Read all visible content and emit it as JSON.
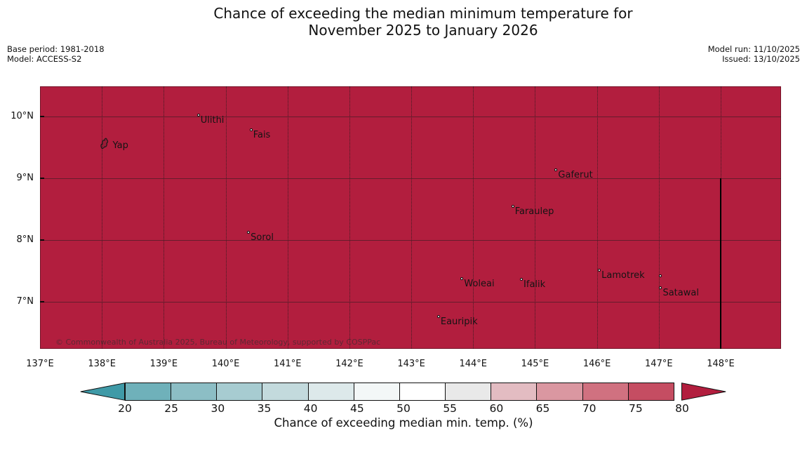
{
  "title": {
    "line1": "Chance of exceeding the median minimum temperature for",
    "line2": "November 2025 to January 2026"
  },
  "annotations": {
    "base_period": "Base period: 1981-2018",
    "model": "Model: ACCESS-S2",
    "model_run": "Model run: 11/10/2025",
    "issued": "Issued: 13/10/2025"
  },
  "map": {
    "fill_color": "#b21e3e",
    "copyright": "© Commonwealth of Australia 2025, Bureau of Meteorology, supported by COSPPac",
    "x_ticks": [
      {
        "label": "137°E",
        "lon": 137
      },
      {
        "label": "138°E",
        "lon": 138
      },
      {
        "label": "139°E",
        "lon": 139
      },
      {
        "label": "140°E",
        "lon": 140
      },
      {
        "label": "141°E",
        "lon": 141
      },
      {
        "label": "142°E",
        "lon": 142
      },
      {
        "label": "143°E",
        "lon": 143
      },
      {
        "label": "144°E",
        "lon": 144
      },
      {
        "label": "145°E",
        "lon": 145
      },
      {
        "label": "146°E",
        "lon": 146
      },
      {
        "label": "147°E",
        "lon": 147
      },
      {
        "label": "148°E",
        "lon": 148
      }
    ],
    "y_ticks": [
      {
        "label": "10°N",
        "lat": 10
      },
      {
        "label": "9°N",
        "lat": 9
      },
      {
        "label": "8°N",
        "lat": 8
      },
      {
        "label": "7°N",
        "lat": 7
      }
    ],
    "boundary_line": {
      "lon": 148,
      "lat_from": 9,
      "to_bottom": true
    },
    "places": [
      {
        "name": "Ulithi",
        "lon": 139.56,
        "lat": 10.02
      },
      {
        "name": "Fais",
        "lon": 140.41,
        "lat": 9.79
      },
      {
        "name": "Yap",
        "lon": 138.06,
        "lat": 9.56,
        "icon": "island"
      },
      {
        "name": "Gaferut",
        "lon": 145.34,
        "lat": 9.14
      },
      {
        "name": "Faraulep",
        "lon": 144.64,
        "lat": 8.55
      },
      {
        "name": "Sorol",
        "lon": 140.37,
        "lat": 8.13
      },
      {
        "name": "Woleai",
        "lon": 143.82,
        "lat": 7.38
      },
      {
        "name": "Ifalik",
        "lon": 144.78,
        "lat": 7.36
      },
      {
        "name": "Lamotrek",
        "lon": 146.04,
        "lat": 7.51
      },
      {
        "name": "",
        "lon": 147.02,
        "lat": 7.42
      },
      {
        "name": "Satawal",
        "lon": 147.03,
        "lat": 7.23
      },
      {
        "name": "Eauripik",
        "lon": 143.44,
        "lat": 6.76
      }
    ]
  },
  "colorbar": {
    "caption": "Chance of exceeding median min. temp. (%)",
    "tick_labels": [
      "20",
      "25",
      "30",
      "35",
      "40",
      "45",
      "50",
      "55",
      "60",
      "65",
      "70",
      "75",
      "80"
    ],
    "segment_colors": [
      "#6fb1ba",
      "#8cbec5",
      "#a7ccd1",
      "#c3dadd",
      "#dde9ea",
      "#f3f7f7",
      "#ffffff",
      "#e9e9e9",
      "#e3bcc2",
      "#da97a1",
      "#d07180",
      "#c54d62"
    ],
    "under_color": "#3f9aa7",
    "over_color": "#b21e3e"
  },
  "chart_data": {
    "type": "heatmap",
    "title": "Chance of exceeding the median minimum temperature for November 2025 to January 2026",
    "colorbar_label": "Chance of exceeding median min. temp. (%)",
    "colorbar_ticks": [
      20,
      25,
      30,
      35,
      40,
      45,
      50,
      55,
      60,
      65,
      70,
      75,
      80
    ],
    "lon_range_deg_east": [
      137,
      149
    ],
    "lat_range_deg_north": [
      6.25,
      10.5
    ],
    "field_description": "Entire displayed region shaded in the >80% class (dark crimson)",
    "grid": true,
    "legend_position": "bottom"
  }
}
